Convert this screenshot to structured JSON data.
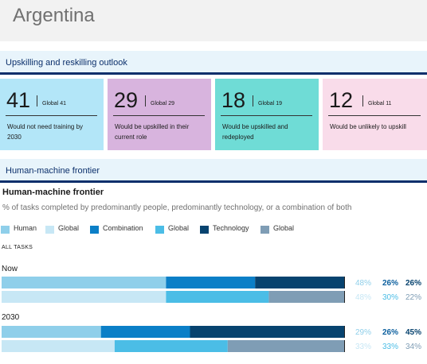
{
  "page_title": "Argentina",
  "sections": {
    "outlook_title": "Upskilling and reskilling outlook",
    "frontier_title": "Human-machine frontier"
  },
  "cards": [
    {
      "value": "41",
      "global_label": "Global",
      "global_value": "41",
      "description": "Would not need training by 2030",
      "color": "#b3e6f8"
    },
    {
      "value": "29",
      "global_label": "Global",
      "global_value": "29",
      "description": "Would be upskilled in their current role",
      "color": "#d8b4de"
    },
    {
      "value": "18",
      "global_label": "Global",
      "global_value": "19",
      "description": "Would be upskilled and redeployed",
      "color": "#6fdcd6"
    },
    {
      "value": "12",
      "global_label": "Global",
      "global_value": "11",
      "description": "Would be unlikely to upskill",
      "color": "#f9dcea"
    }
  ],
  "chart_data": {
    "type": "bar",
    "orientation": "horizontal",
    "stacked": true,
    "title": "Human-machine frontier",
    "subtitle": "% of tasks completed by predominantly people, predominantly technology, or a combination of both",
    "section_label": "ALL TASKS",
    "legend": [
      {
        "label": "Human",
        "color": "#8fcfea"
      },
      {
        "label": "Global",
        "color": "#c7e7f5"
      },
      {
        "label": "Combination",
        "color": "#0b7fc7"
      },
      {
        "label": "Global",
        "color": "#4bbde6"
      },
      {
        "label": "Technology",
        "color": "#07436f"
      },
      {
        "label": "Global",
        "color": "#7f9db5"
      }
    ],
    "groups": [
      {
        "label": "Now",
        "rows": [
          {
            "name": "Argentina",
            "values": [
              48,
              26,
              26
            ],
            "labels": [
              "48%",
              "26%",
              "26%"
            ],
            "colors": [
              "#8fcfea",
              "#0b7fc7",
              "#07436f"
            ]
          },
          {
            "name": "Global",
            "values": [
              48,
              30,
              22
            ],
            "labels": [
              "48%",
              "30%",
              "22%"
            ],
            "colors": [
              "#c7e7f5",
              "#4bbde6",
              "#7f9db5"
            ]
          }
        ]
      },
      {
        "label": "2030",
        "rows": [
          {
            "name": "Argentina",
            "values": [
              29,
              26,
              45
            ],
            "labels": [
              "29%",
              "26%",
              "45%"
            ],
            "colors": [
              "#8fcfea",
              "#0b7fc7",
              "#07436f"
            ]
          },
          {
            "name": "Global",
            "values": [
              33,
              33,
              34
            ],
            "labels": [
              "33%",
              "33%",
              "34%"
            ],
            "colors": [
              "#c7e7f5",
              "#4bbde6",
              "#7f9db5"
            ]
          }
        ]
      }
    ],
    "label_colors": {
      "country_row": [
        "#8fcfea",
        "#0b5f9e",
        "#07436f"
      ],
      "global_row": [
        "#c7e7f5",
        "#4bbde6",
        "#7f9db5"
      ]
    },
    "xlim": [
      0,
      100
    ]
  }
}
